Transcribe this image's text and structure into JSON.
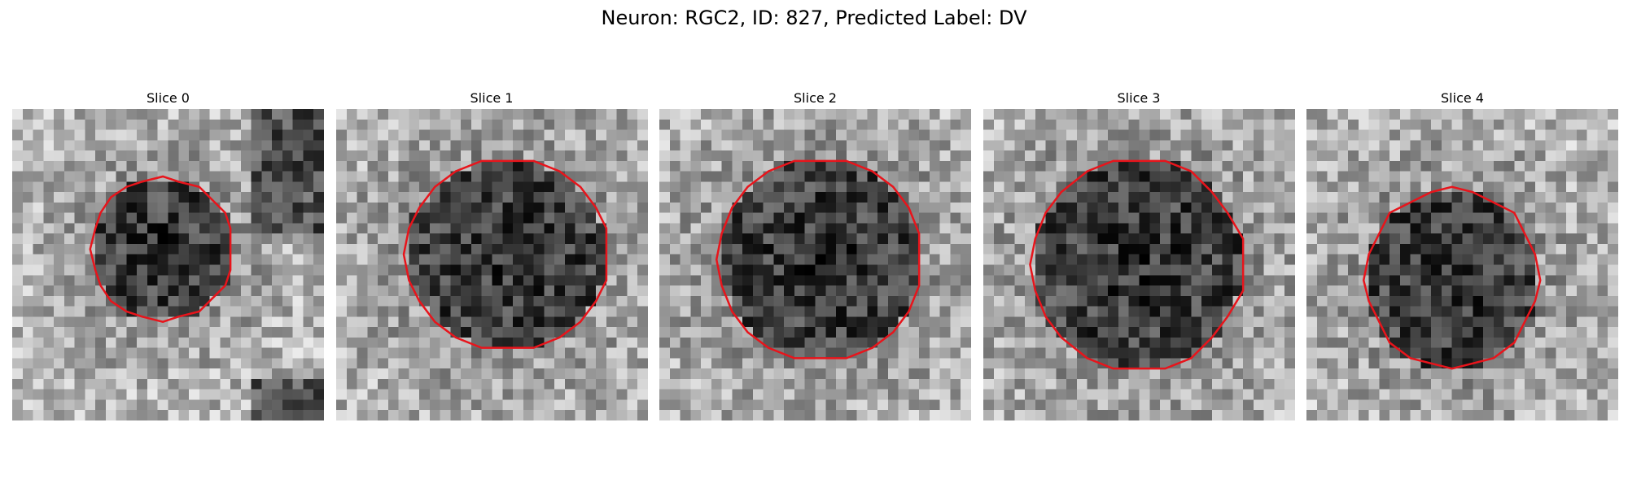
{
  "title": "Neuron: RGC2, ID: 827, Predicted Label: DV",
  "panels": [
    {
      "title": "Slice 0"
    },
    {
      "title": "Slice 1"
    },
    {
      "title": "Slice 2"
    },
    {
      "title": "Slice 3"
    },
    {
      "title": "Slice 4"
    }
  ]
}
